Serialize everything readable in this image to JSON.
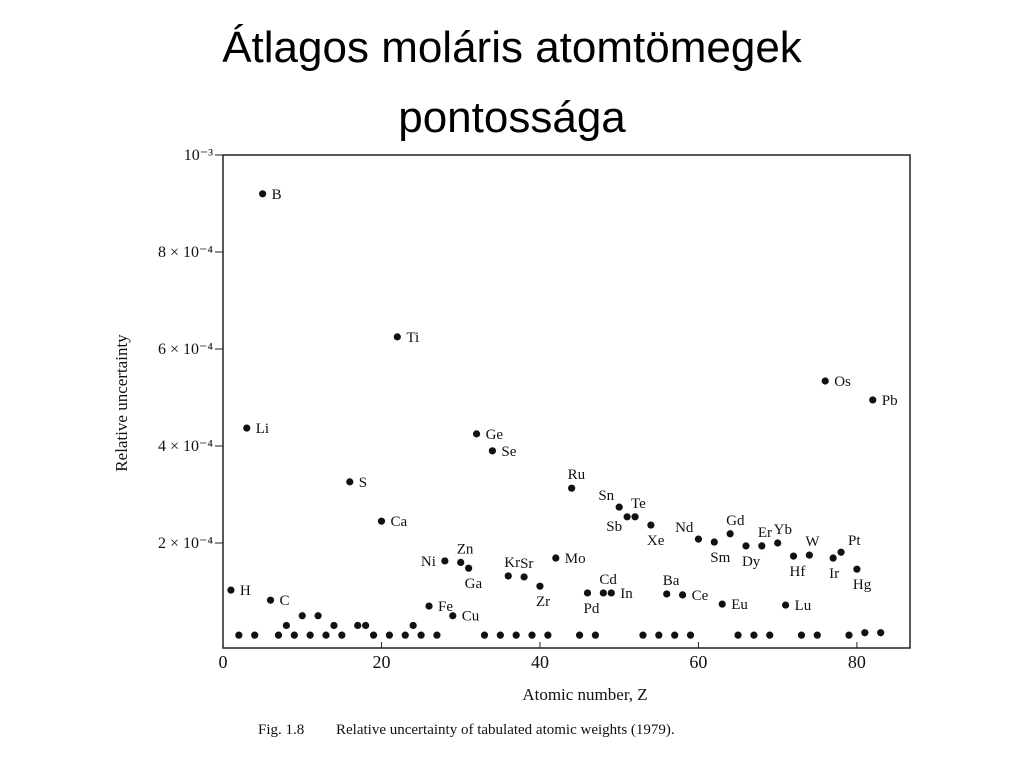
{
  "slide": {
    "title_lines": [
      "Átlagos moláris atomtömegek",
      "pontossága"
    ]
  },
  "chart_data": {
    "type": "scatter",
    "xlabel": "Atomic number, Z",
    "ylabel": "Relative uncertainty",
    "figure_number": "Fig. 1.8",
    "caption": "Relative uncertainty of tabulated atomic weights (1979).",
    "xlim": [
      0,
      86.7
    ],
    "ylim": [
      -1.65e-05,
      0.001
    ],
    "xticks": [
      0,
      20,
      40,
      60,
      80
    ],
    "yticks": [
      {
        "value": 0.0002,
        "label": "2 × 10⁻⁴"
      },
      {
        "value": 0.0004,
        "label": "4 × 10⁻⁴"
      },
      {
        "value": 0.0006,
        "label": "6 × 10⁻⁴"
      },
      {
        "value": 0.0008,
        "label": "8 × 10⁻⁴"
      },
      {
        "value": 0.001,
        "label": "10⁻³"
      }
    ],
    "grid": false,
    "color": "#111111",
    "series": [
      {
        "labels": [
          "H",
          "Li",
          "B",
          "C",
          "S",
          "Ca",
          "Ti",
          "Fe",
          "Ni",
          "Cu",
          "Zn",
          "Ga",
          "Ge",
          "Se",
          "Kr",
          "Sr",
          "Zr",
          "Mo",
          "Ru",
          "Pd",
          "Cd",
          "In",
          "Sn",
          "Sb",
          "Te",
          "Xe",
          "Ba",
          "Ce",
          "Nd",
          "Sm",
          "Eu",
          "Gd",
          "Dy",
          "Er",
          "Yb",
          "Hf",
          "Lu",
          "W",
          "Os",
          "Ir",
          "Pt",
          "Hg",
          "Pb"
        ],
        "x": [
          1,
          3,
          5,
          6,
          16,
          20,
          22,
          26,
          28,
          29,
          30,
          31,
          32,
          34,
          36,
          38,
          40,
          42,
          44,
          46,
          48,
          49,
          50,
          51,
          52,
          54,
          56,
          58,
          60,
          62,
          63,
          64,
          66,
          68,
          70,
          72,
          71,
          74,
          76,
          77,
          78,
          80,
          82
        ],
        "values": [
          0.000103,
          0.000437,
          0.00092,
          8.2e-05,
          0.000326,
          0.000245,
          0.000625,
          7e-05,
          0.000163,
          5e-05,
          0.00016,
          0.000148,
          0.000425,
          0.00039,
          0.000132,
          0.00013,
          0.000111,
          0.000169,
          0.000313,
          9.7e-05,
          9.7e-05,
          9.7e-05,
          0.000274,
          0.000254,
          0.000254,
          0.000237,
          9.5e-05,
          9.3e-05,
          0.000208,
          0.000202,
          7.4e-05,
          0.000219,
          0.000194,
          0.000194,
          0.0002,
          0.000173,
          7.2e-05,
          0.000175,
          0.000534,
          0.000169,
          0.000181,
          0.000146,
          0.000495
        ]
      },
      {
        "x": [
          2,
          4,
          7,
          8,
          9,
          10,
          11,
          12,
          13,
          14,
          15,
          17,
          18,
          19,
          21,
          23,
          24,
          25,
          27,
          33,
          35,
          37,
          39,
          41,
          45,
          47,
          53,
          55,
          57,
          59,
          65,
          67,
          69,
          73,
          75,
          79,
          81,
          83
        ],
        "values": [
          1e-05,
          1e-05,
          1e-05,
          3e-05,
          1e-05,
          5e-05,
          1e-05,
          5e-05,
          1e-05,
          3e-05,
          1e-05,
          3e-05,
          3e-05,
          1e-05,
          1e-05,
          1e-05,
          3e-05,
          1e-05,
          1e-05,
          1e-05,
          1e-05,
          1e-05,
          1e-05,
          1e-05,
          1e-05,
          1e-05,
          1e-05,
          1e-05,
          1e-05,
          1e-05,
          1e-05,
          1e-05,
          1e-05,
          1e-05,
          1e-05,
          1e-05,
          1.5e-05,
          1.5e-05
        ]
      }
    ]
  }
}
